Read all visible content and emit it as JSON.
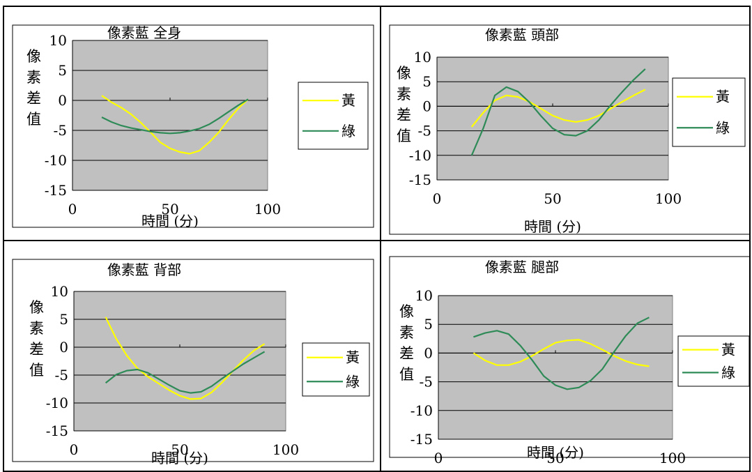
{
  "chart_data": [
    {
      "type": "line",
      "title": "像素藍 全身",
      "xlabel": "時間 (分)",
      "ylabel": "像素差值",
      "xlim": [
        0,
        100
      ],
      "ylim": [
        -15,
        10
      ],
      "xticks": [
        0,
        50,
        100
      ],
      "yticks": [
        10,
        5,
        0,
        -5,
        -10,
        -15
      ],
      "grid": "horizontal",
      "legend": "right",
      "series": [
        {
          "name": "黃",
          "color": "#FFFF00",
          "x": [
            15,
            20,
            25,
            30,
            35,
            40,
            45,
            50,
            55,
            60,
            65,
            70,
            75,
            80,
            85,
            90
          ],
          "y": [
            0.8,
            -0.3,
            -1.2,
            -2.3,
            -3.7,
            -5.3,
            -7.0,
            -8.0,
            -8.6,
            -8.9,
            -8.4,
            -7.0,
            -5.3,
            -3.2,
            -1.3,
            0.2
          ]
        },
        {
          "name": "綠",
          "color": "#2E8B57",
          "x": [
            15,
            20,
            25,
            30,
            35,
            40,
            45,
            50,
            55,
            60,
            65,
            70,
            75,
            80,
            85,
            90
          ],
          "y": [
            -2.8,
            -3.6,
            -4.2,
            -4.6,
            -4.9,
            -5.2,
            -5.4,
            -5.5,
            -5.4,
            -5.1,
            -4.7,
            -4.0,
            -3.0,
            -1.9,
            -0.8,
            0.2
          ]
        }
      ]
    },
    {
      "type": "line",
      "title": "像素藍 頭部",
      "xlabel": "時間 (分)",
      "ylabel": "像素差值",
      "xlim": [
        0,
        100
      ],
      "ylim": [
        -15,
        10
      ],
      "xticks": [
        0,
        50,
        100
      ],
      "yticks": [
        10,
        5,
        0,
        -5,
        -10,
        -15
      ],
      "grid": "horizontal",
      "legend": "right",
      "series": [
        {
          "name": "黃",
          "color": "#FFFF00",
          "x": [
            15,
            20,
            25,
            30,
            35,
            40,
            45,
            50,
            55,
            60,
            65,
            70,
            75,
            80,
            85,
            90
          ],
          "y": [
            -4.2,
            -1.3,
            1.2,
            2.2,
            1.9,
            0.9,
            -0.5,
            -1.9,
            -2.8,
            -3.2,
            -2.8,
            -1.9,
            -0.5,
            0.9,
            2.2,
            3.4
          ]
        },
        {
          "name": "綠",
          "color": "#2E8B57",
          "x": [
            15,
            20,
            25,
            30,
            35,
            40,
            45,
            50,
            55,
            60,
            65,
            70,
            75,
            80,
            85,
            90
          ],
          "y": [
            -10.0,
            -4.5,
            2.2,
            3.9,
            3.0,
            0.8,
            -2.0,
            -4.5,
            -5.8,
            -6.0,
            -5.0,
            -2.8,
            0.2,
            2.9,
            5.4,
            7.6
          ]
        }
      ]
    },
    {
      "type": "line",
      "title": "像素藍  背部",
      "xlabel": "時間 (分)",
      "ylabel": "像素差值",
      "xlim": [
        0,
        100
      ],
      "ylim": [
        -15,
        10
      ],
      "xticks": [
        0,
        50,
        100
      ],
      "yticks": [
        10,
        5,
        0,
        -5,
        -10,
        -15
      ],
      "grid": "horizontal",
      "legend": "right",
      "series": [
        {
          "name": "黃",
          "color": "#FFFF00",
          "x": [
            15,
            20,
            25,
            30,
            35,
            40,
            45,
            50,
            55,
            60,
            65,
            70,
            75,
            80,
            85,
            90
          ],
          "y": [
            5.4,
            1.5,
            -1.5,
            -3.8,
            -5.3,
            -6.5,
            -7.7,
            -8.7,
            -9.3,
            -9.2,
            -8.1,
            -6.3,
            -4.3,
            -2.3,
            -0.6,
            0.6
          ]
        },
        {
          "name": "綠",
          "color": "#2E8B57",
          "x": [
            15,
            20,
            25,
            30,
            35,
            40,
            45,
            50,
            55,
            60,
            65,
            70,
            75,
            80,
            85,
            90
          ],
          "y": [
            -6.4,
            -4.9,
            -4.2,
            -4.0,
            -4.6,
            -5.7,
            -6.8,
            -7.8,
            -8.2,
            -8.0,
            -7.0,
            -5.6,
            -4.3,
            -3.0,
            -1.9,
            -0.8
          ]
        }
      ]
    },
    {
      "type": "line",
      "title": "像素藍 腿部",
      "xlabel": "時間 (分)",
      "ylabel": "像素差值",
      "xlim": [
        0,
        100
      ],
      "ylim": [
        -15,
        10
      ],
      "xticks": [
        0,
        50,
        100
      ],
      "yticks": [
        10,
        5,
        0,
        -5,
        -10,
        -15
      ],
      "grid": "horizontal",
      "legend": "right",
      "series": [
        {
          "name": "黃",
          "color": "#FFFF00",
          "x": [
            15,
            20,
            25,
            30,
            35,
            40,
            45,
            50,
            55,
            60,
            65,
            70,
            75,
            80,
            85,
            90
          ],
          "y": [
            0.0,
            -1.3,
            -2.1,
            -2.1,
            -1.5,
            -0.5,
            0.7,
            1.8,
            2.2,
            2.3,
            1.6,
            0.6,
            -0.5,
            -1.4,
            -2.0,
            -2.3
          ]
        },
        {
          "name": "綠",
          "color": "#2E8B57",
          "x": [
            15,
            20,
            25,
            30,
            35,
            40,
            45,
            50,
            55,
            60,
            65,
            70,
            75,
            80,
            85,
            90
          ],
          "y": [
            2.8,
            3.5,
            3.9,
            3.3,
            1.3,
            -1.2,
            -4.0,
            -5.6,
            -6.3,
            -6.0,
            -4.8,
            -2.8,
            0.2,
            3.0,
            5.2,
            6.2
          ]
        }
      ]
    }
  ]
}
